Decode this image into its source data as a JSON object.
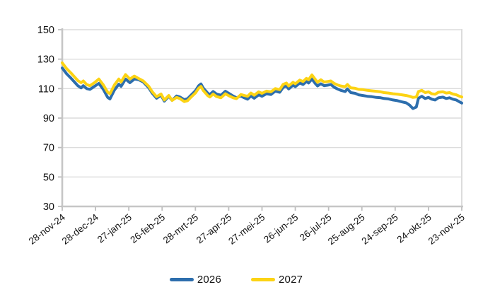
{
  "chart": {
    "background_color": "#FFFFFF",
    "gridline_color": "#DCDCDC",
    "axis_color": "#C6C6C6",
    "tick_color": "#BDBDBD",
    "label_color": "#111111"
  },
  "chart_data": {
    "type": "line",
    "title": "",
    "xlabel": "",
    "ylabel": "",
    "ylim": [
      30,
      150
    ],
    "y_ticks": [
      150,
      130,
      110,
      90,
      70,
      50,
      30
    ],
    "grid": "horizontal",
    "legend_position": "bottom-center",
    "x_unit": "days since 28-nov-24",
    "x_range_days": [
      0,
      360
    ],
    "x_tick_days": [
      0,
      30,
      60,
      90,
      120,
      150,
      180,
      210,
      240,
      270,
      300,
      330,
      360
    ],
    "x_tick_labels": [
      "28-nov-24",
      "28-dec-24",
      "27-jan-25",
      "26-feb-25",
      "28-mrt-25",
      "27-apr-25",
      "27-mei-25",
      "26-jun-25",
      "26-jul-25",
      "25-aug-25",
      "24-sep-25",
      "24-okt-25",
      "23-nov-25"
    ],
    "x_days": [
      0,
      4,
      8,
      11,
      14,
      17,
      19,
      22,
      25,
      29,
      33,
      37,
      41,
      43,
      47,
      51,
      53,
      57,
      61,
      65,
      69,
      73,
      78,
      81,
      85,
      89,
      92,
      96,
      99,
      103,
      106,
      110,
      113,
      116,
      120,
      123,
      125,
      127,
      131,
      133,
      136,
      139,
      143,
      147,
      150,
      154,
      157,
      161,
      164,
      167,
      170,
      173,
      177,
      180,
      184,
      188,
      192,
      196,
      199,
      202,
      204,
      208,
      210,
      214,
      217,
      220,
      222,
      225,
      228,
      230,
      233,
      236,
      239,
      242,
      245,
      248,
      251,
      255,
      257,
      260,
      264,
      267,
      271,
      275,
      279,
      283,
      287,
      290,
      294,
      298,
      302,
      306,
      310,
      313,
      316,
      319,
      321,
      324,
      327,
      330,
      333,
      336,
      339,
      343,
      346,
      349,
      352,
      355,
      358,
      360
    ],
    "series": [
      {
        "name": "2026",
        "color": "#2D6EAD",
        "values": [
          124,
          120,
          117,
          114.5,
          112,
          110.5,
          112,
          110,
          109.5,
          111.5,
          113.5,
          109.5,
          104,
          103,
          109,
          113,
          111.5,
          116.5,
          114,
          116.5,
          116,
          114.5,
          110.5,
          107,
          103.5,
          105.5,
          101.5,
          104.8,
          102,
          105,
          104.3,
          102.5,
          103.2,
          105.5,
          108.5,
          112,
          113.2,
          110.5,
          107,
          106,
          108,
          106.3,
          105.5,
          108.2,
          106.8,
          105,
          103.8,
          105,
          103.8,
          102.8,
          105,
          103.5,
          105.8,
          104.8,
          106.5,
          106,
          108.3,
          107.5,
          110.8,
          111.8,
          109.8,
          112.3,
          111.3,
          113.8,
          112.8,
          114.8,
          113.8,
          116.5,
          113.5,
          111.8,
          113.3,
          112,
          112.3,
          112.8,
          111,
          109.8,
          108.8,
          108,
          109.8,
          107.3,
          106.8,
          105.8,
          105.3,
          104.8,
          104.5,
          104,
          103.8,
          103.3,
          103,
          102.3,
          101.8,
          101,
          100.3,
          98.8,
          96.5,
          97.5,
          103.5,
          104.8,
          103.3,
          104,
          102.8,
          102.3,
          103.8,
          104.2,
          103.3,
          103.8,
          102.8,
          102.3,
          101,
          100.2
        ]
      },
      {
        "name": "2027",
        "color": "#FCD314",
        "values": [
          127.5,
          123.5,
          120.5,
          118,
          115.5,
          114,
          115.2,
          112.8,
          112,
          114,
          116.5,
          112.5,
          107.5,
          106.5,
          112.5,
          116.5,
          114.5,
          119.5,
          116.5,
          118.5,
          116.8,
          115.2,
          111.5,
          108,
          104.5,
          106.3,
          102.3,
          105.3,
          102,
          104,
          103.2,
          101.2,
          101.8,
          104.2,
          107,
          110.3,
          111.5,
          108.8,
          105.3,
          104.3,
          106.3,
          104.6,
          103.8,
          106.5,
          105.2,
          103.8,
          103.2,
          106,
          105.3,
          104.8,
          107,
          105.5,
          107.8,
          106.8,
          108.3,
          107.8,
          110,
          109.3,
          112.8,
          113.8,
          111.8,
          114.3,
          113.3,
          115.8,
          114.8,
          117,
          116,
          119.3,
          116.3,
          114.3,
          116,
          114.5,
          114.8,
          115.2,
          113.5,
          112.5,
          111.8,
          111.3,
          112.8,
          110.5,
          110.2,
          109.5,
          109.3,
          108.8,
          108.5,
          108.2,
          107.8,
          107.3,
          107,
          106.5,
          106.2,
          105.8,
          105.3,
          104.8,
          104,
          104.3,
          108,
          108.8,
          107.3,
          107.8,
          106.5,
          106.2,
          107.5,
          107.8,
          107,
          107.3,
          106.3,
          105.8,
          104.8,
          104.3
        ]
      }
    ]
  }
}
